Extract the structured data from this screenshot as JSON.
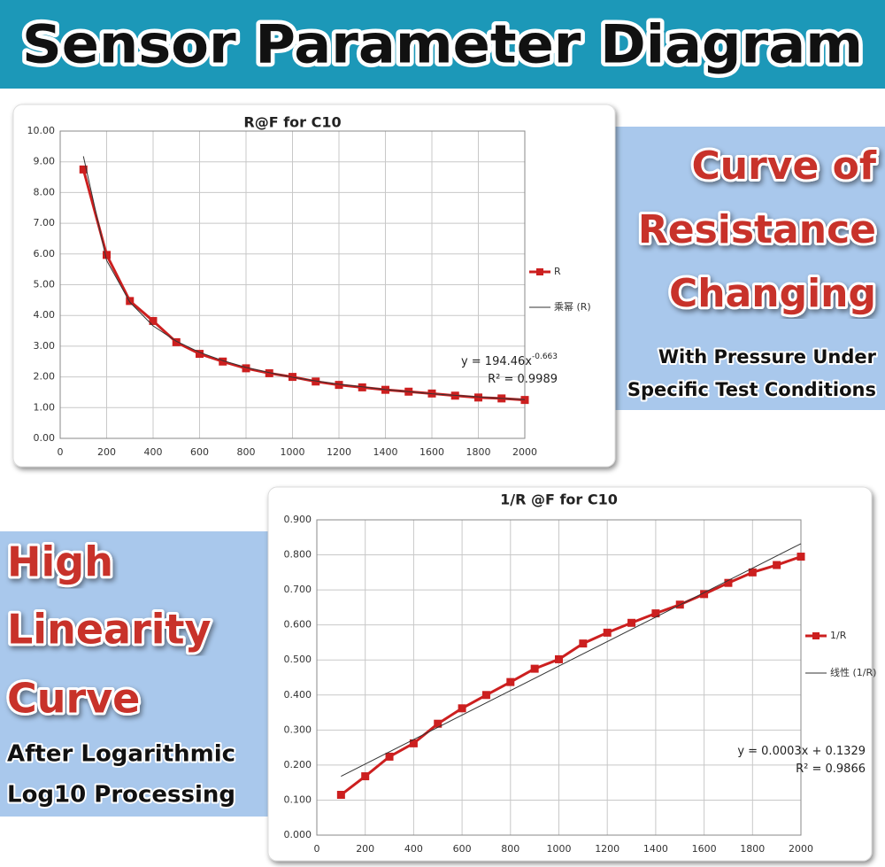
{
  "header": {
    "title": "Sensor Parameter Diagram"
  },
  "callouts": [
    {
      "heading": [
        "Curve of",
        "Resistance",
        "Changing"
      ],
      "subtext": [
        "With Pressure Under",
        "Specific Test Conditions"
      ]
    },
    {
      "heading": [
        "High",
        "Linearity",
        "Curve"
      ],
      "subtext": [
        "After Logarithmic",
        "Log10 Processing"
      ]
    }
  ],
  "chart_data": [
    {
      "type": "line",
      "title": "R@F  for C10",
      "x": [
        100,
        200,
        300,
        400,
        500,
        600,
        700,
        800,
        900,
        1000,
        1100,
        1200,
        1300,
        1400,
        1500,
        1600,
        1700,
        1800,
        1900,
        2000
      ],
      "series": [
        {
          "name": "R",
          "color": "#cc1f1f",
          "marker": "square",
          "line_width": 3,
          "values": [
            8.75,
            5.97,
            4.47,
            3.82,
            3.13,
            2.75,
            2.5,
            2.28,
            2.12,
            2.0,
            1.85,
            1.74,
            1.66,
            1.58,
            1.52,
            1.46,
            1.39,
            1.33,
            1.3,
            1.25
          ]
        },
        {
          "name": "乘幂 (R)",
          "color": "#333333",
          "line_width": 1,
          "values": [
            9.18,
            5.79,
            4.43,
            3.66,
            3.16,
            2.8,
            2.53,
            2.31,
            2.14,
            1.99,
            1.87,
            1.76,
            1.68,
            1.59,
            1.52,
            1.45,
            1.4,
            1.35,
            1.3,
            1.26
          ]
        }
      ],
      "xlim": [
        0,
        2000
      ],
      "xticks": [
        0,
        200,
        400,
        600,
        800,
        1000,
        1200,
        1400,
        1600,
        1800,
        2000
      ],
      "ylim": [
        0,
        10
      ],
      "yticks": [
        {
          "value": 0,
          "label": "0.00"
        },
        {
          "value": 1,
          "label": "1.00"
        },
        {
          "value": 2,
          "label": "2.00"
        },
        {
          "value": 3,
          "label": "3.00"
        },
        {
          "value": 4,
          "label": "4.00"
        },
        {
          "value": 5,
          "label": "5.00"
        },
        {
          "value": 6,
          "label": "6.00"
        },
        {
          "value": 7,
          "label": "7.00"
        },
        {
          "value": 8,
          "label": "8.00"
        },
        {
          "value": 9,
          "label": "9.00"
        },
        {
          "value": 10,
          "label": "10.00"
        }
      ],
      "grid": true,
      "legend": "right",
      "annotations": [
        {
          "text": "y = 194.46x",
          "superscript": "-0.663"
        },
        {
          "text": "R² = 0.9989"
        }
      ]
    },
    {
      "type": "line",
      "title": "1/R @F for C10",
      "x": [
        100,
        200,
        300,
        400,
        500,
        600,
        700,
        800,
        900,
        1000,
        1100,
        1200,
        1300,
        1400,
        1500,
        1600,
        1700,
        1800,
        1900,
        2000
      ],
      "series": [
        {
          "name": "1/R",
          "color": "#cc1f1f",
          "marker": "square",
          "line_width": 3,
          "values": [
            0.115,
            0.168,
            0.224,
            0.262,
            0.318,
            0.362,
            0.4,
            0.437,
            0.475,
            0.502,
            0.547,
            0.578,
            0.606,
            0.633,
            0.658,
            0.688,
            0.72,
            0.75,
            0.771,
            0.795
          ]
        },
        {
          "name": "线性 (1/R)",
          "color": "#333333",
          "line_width": 1,
          "x": [
            100,
            2000
          ],
          "values": [
            0.168,
            0.832
          ]
        }
      ],
      "xlim": [
        0,
        2000
      ],
      "xticks": [
        0,
        200,
        400,
        600,
        800,
        1000,
        1200,
        1400,
        1600,
        1800,
        2000
      ],
      "ylim": [
        0,
        0.9
      ],
      "yticks": [
        {
          "value": 0,
          "label": "0.000"
        },
        {
          "value": 0.1,
          "label": "0.100"
        },
        {
          "value": 0.2,
          "label": "0.200"
        },
        {
          "value": 0.3,
          "label": "0.300"
        },
        {
          "value": 0.4,
          "label": "0.400"
        },
        {
          "value": 0.5,
          "label": "0.500"
        },
        {
          "value": 0.6,
          "label": "0.600"
        },
        {
          "value": 0.7,
          "label": "0.700"
        },
        {
          "value": 0.8,
          "label": "0.800"
        },
        {
          "value": 0.9,
          "label": "0.900"
        }
      ],
      "grid": true,
      "legend": "right",
      "annotations": [
        {
          "text": "y = 0.0003x + 0.1329"
        },
        {
          "text": "R² = 0.9866"
        }
      ]
    }
  ]
}
